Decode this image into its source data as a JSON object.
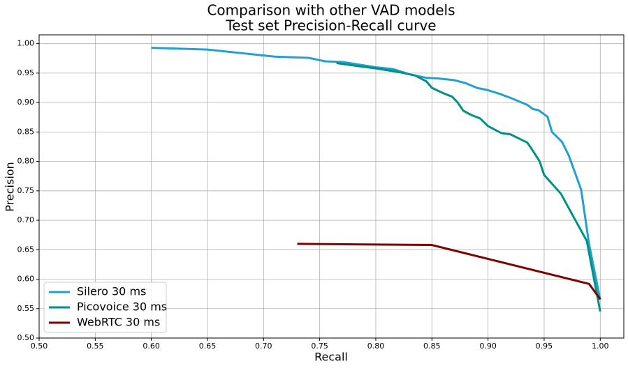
{
  "chart_data": {
    "type": "line",
    "title": "Comparison with other VAD models",
    "subtitle": "Test set Precision-Recall curve",
    "x_label": "Recall",
    "y_label": "Precision",
    "xlim": [
      0.5,
      1.021
    ],
    "ylim": [
      0.5,
      1.015
    ],
    "xticks": [
      {
        "value": 0.5,
        "label": "0.50"
      },
      0.55,
      {
        "value": 0.6,
        "label": "0.60"
      },
      0.65,
      {
        "value": 0.7,
        "label": "0.70"
      },
      0.75,
      {
        "value": 0.8,
        "label": "0.80"
      },
      0.85,
      {
        "value": 0.9,
        "label": "0.90"
      },
      0.95,
      {
        "value": 1.0,
        "label": "1.00"
      }
    ],
    "yticks": [
      {
        "value": 0.5,
        "label": "0.50"
      },
      0.55,
      {
        "value": 0.6,
        "label": "0.60"
      },
      0.65,
      {
        "value": 0.7,
        "label": "0.70"
      },
      0.75,
      {
        "value": 0.8,
        "label": "0.80"
      },
      0.85,
      {
        "value": 0.9,
        "label": "0.90"
      },
      0.95,
      {
        "value": 1.0,
        "label": "1.00"
      }
    ],
    "grid": true,
    "legend": "lower left",
    "series": [
      {
        "name": "Silero 30 ms",
        "color": "#22a0d2",
        "x": [
          0.6,
          0.65,
          0.68,
          0.71,
          0.74,
          0.755,
          0.77,
          0.8,
          0.815,
          0.83,
          0.845,
          0.855,
          0.87,
          0.88,
          0.89,
          0.9,
          0.91,
          0.92,
          0.93,
          0.935,
          0.94,
          0.945,
          0.953,
          0.957,
          0.966,
          0.972,
          0.983,
          0.99,
          1.0
        ],
        "values": [
          0.993,
          0.99,
          0.984,
          0.978,
          0.976,
          0.97,
          0.969,
          0.96,
          0.957,
          0.948,
          0.942,
          0.941,
          0.938,
          0.933,
          0.925,
          0.921,
          0.915,
          0.908,
          0.9,
          0.896,
          0.889,
          0.887,
          0.876,
          0.85,
          0.833,
          0.81,
          0.752,
          0.66,
          0.565
        ]
      },
      {
        "name": "Picovoice 30 ms",
        "color": "#009385",
        "x": [
          0.765,
          0.78,
          0.8,
          0.82,
          0.835,
          0.845,
          0.85,
          0.86,
          0.868,
          0.873,
          0.878,
          0.885,
          0.893,
          0.9,
          0.912,
          0.92,
          0.935,
          0.94,
          0.946,
          0.95,
          0.965,
          0.975,
          0.988,
          1.0
        ],
        "values": [
          0.967,
          0.963,
          0.958,
          0.952,
          0.946,
          0.936,
          0.925,
          0.916,
          0.91,
          0.9,
          0.886,
          0.879,
          0.873,
          0.86,
          0.848,
          0.846,
          0.832,
          0.818,
          0.8,
          0.777,
          0.745,
          0.71,
          0.665,
          0.545
        ]
      },
      {
        "name": "WebRTC 30 ms",
        "color": "#800000",
        "x": [
          0.73,
          0.85,
          0.99,
          1.0
        ],
        "values": [
          0.66,
          0.658,
          0.592,
          0.566
        ]
      }
    ]
  }
}
